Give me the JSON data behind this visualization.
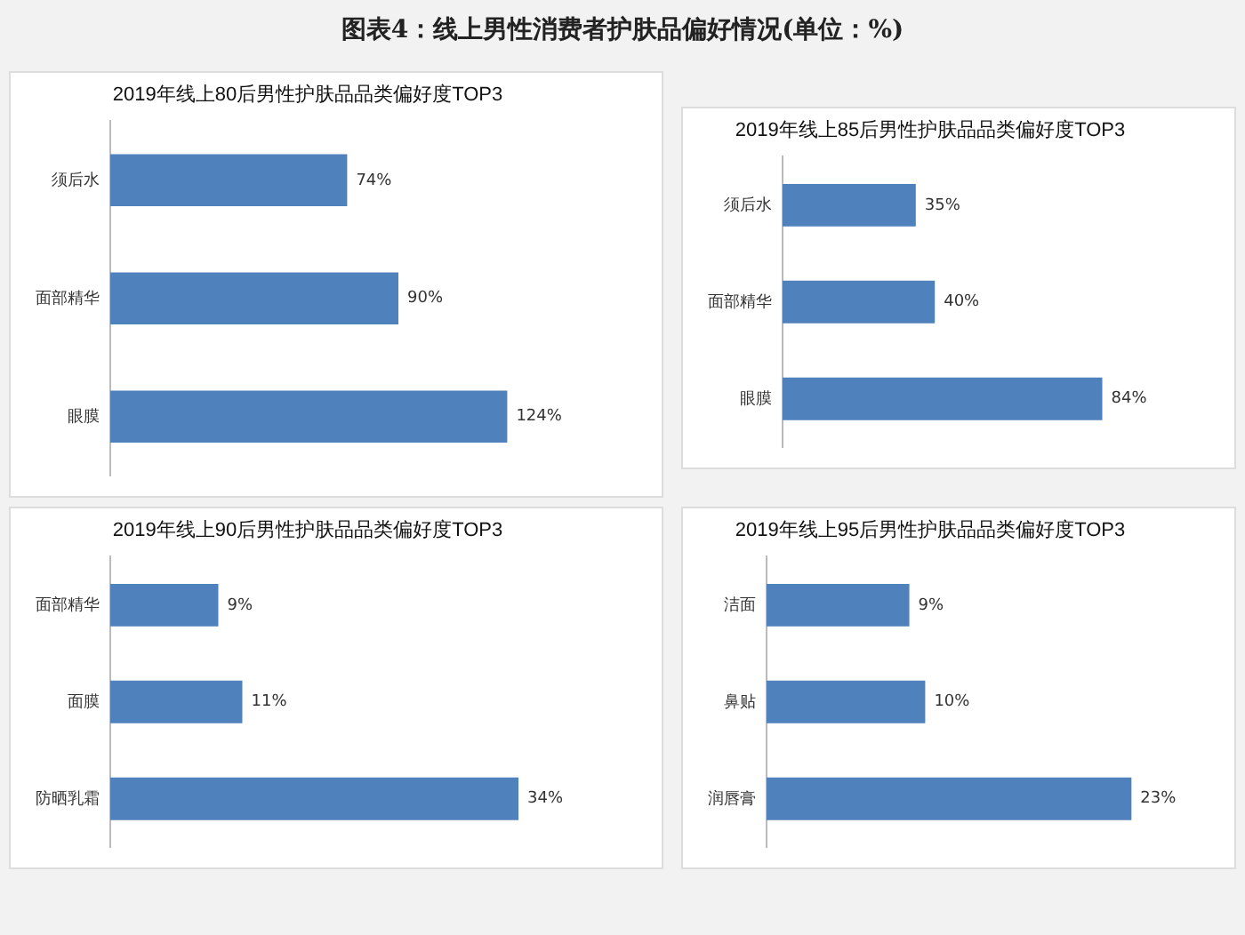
{
  "chart_data": [
    {
      "type": "bar",
      "title": "图表4：线上男性消费者护肤品偏好情况(单位：%)",
      "subtitle": "2019年线上80后男性护肤品品类偏好度TOP3",
      "orientation": "horizontal",
      "categories": [
        "须后水",
        "面部精华",
        "眼膜"
      ],
      "values": [
        74,
        90,
        124
      ],
      "value_labels": [
        "74%",
        "90%",
        "124%"
      ],
      "color": "#4f81bd",
      "legend": false,
      "tick_labels": "y"
    },
    {
      "type": "bar",
      "title": "2019年线上85后男性护肤品品类偏好度TOP3",
      "orientation": "horizontal",
      "categories": [
        "须后水",
        "面部精华",
        "眼膜"
      ],
      "values": [
        35,
        40,
        84
      ],
      "value_labels": [
        "35%",
        "40%",
        "84%"
      ],
      "color": "#4f81bd",
      "legend": false,
      "tick_labels": "y"
    },
    {
      "type": "bar",
      "title": "2019年线上90后男性护肤品品类偏好度TOP3",
      "orientation": "horizontal",
      "categories": [
        "面部精华",
        "面膜",
        "防晒乳霜"
      ],
      "values": [
        9,
        11,
        34
      ],
      "value_labels": [
        "9%",
        "11%",
        "34%"
      ],
      "color": "#4f81bd",
      "legend": false,
      "tick_labels": "y"
    },
    {
      "type": "bar",
      "title": "2019年线上95后男性护肤品品类偏好度TOP3",
      "orientation": "horizontal",
      "categories": [
        "洁面",
        "鼻贴",
        "润唇膏"
      ],
      "values": [
        9,
        10,
        23
      ],
      "value_labels": [
        "9%",
        "10%",
        "23%"
      ],
      "color": "#4f81bd",
      "legend": false,
      "tick_labels": "y"
    }
  ]
}
